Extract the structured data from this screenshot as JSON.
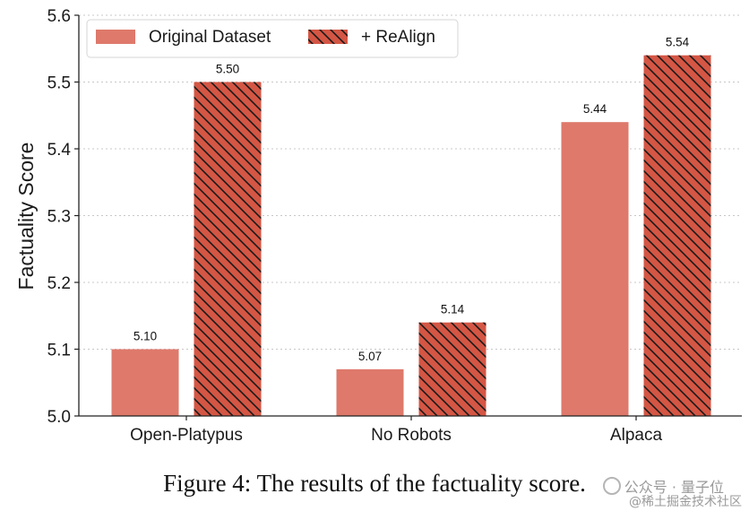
{
  "chart_data": {
    "type": "bar",
    "categories": [
      "Open-Platypus",
      "No Robots",
      "Alpaca"
    ],
    "series": [
      {
        "name": "Original Dataset",
        "values": [
          5.1,
          5.07,
          5.44
        ],
        "value_labels": [
          "5.10",
          "5.07",
          "5.44"
        ],
        "color": "#de796b",
        "hatch": false
      },
      {
        "name": "+ ReAlign",
        "values": [
          5.5,
          5.14,
          5.54
        ],
        "value_labels": [
          "5.50",
          "5.14",
          "5.54"
        ],
        "color": "#d45644",
        "hatch": true
      }
    ],
    "ylabel": "Factuality Score",
    "ylim": [
      5.0,
      5.6
    ],
    "yticks": [
      5.0,
      5.1,
      5.2,
      5.3,
      5.4,
      5.5,
      5.6
    ],
    "ytick_labels": [
      "5.0",
      "5.1",
      "5.2",
      "5.3",
      "5.4",
      "5.5",
      "5.6"
    ],
    "grid": "y-dotted",
    "legend_position": "top-left"
  },
  "caption": "Figure 4: The results of the factuality score.",
  "watermark": {
    "line1": "公众号 · 量子位",
    "line2": "@稀土掘金技术社区"
  }
}
